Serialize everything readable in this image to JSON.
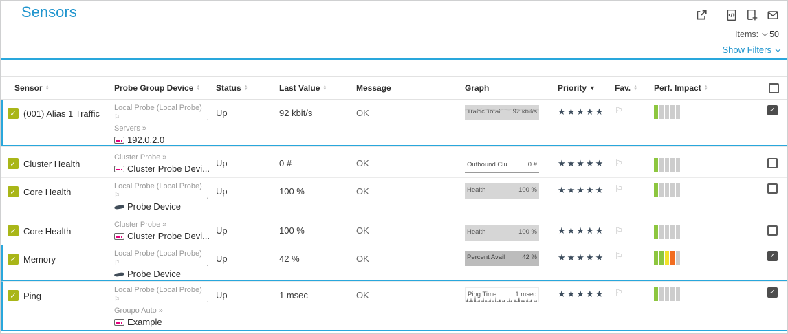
{
  "page": {
    "title": "Sensors"
  },
  "toolbar": {
    "items_label": "Items:",
    "items_value": "50",
    "show_filters_label": "Show Filters",
    "icons": [
      "external-link-icon",
      "code-file-icon",
      "add-file-icon",
      "envelope-icon"
    ]
  },
  "icons": {
    "check": "✓",
    "flag": "⚐",
    "star": "★",
    "raquo": "»"
  },
  "colors": {
    "green": "#8dc63f",
    "yellow": "#f2e22a",
    "orange": "#f26d21",
    "gray": "#cdcdcd",
    "accent_blue": "#29a7dc",
    "title_blue": "#2095ce",
    "sensor_ok": "#a9b618",
    "star": "#3d4d5d"
  },
  "table": {
    "columns": [
      {
        "label": "Sensor",
        "sort": "both"
      },
      {
        "label": "Probe Group Device",
        "sort": "both"
      },
      {
        "label": "Status",
        "sort": "both"
      },
      {
        "label": "Last Value",
        "sort": "both"
      },
      {
        "label": "Message",
        "sort": "none"
      },
      {
        "label": "Graph",
        "sort": "none"
      },
      {
        "label": "Priority",
        "sort": "desc"
      },
      {
        "label": "Fav.",
        "sort": "both"
      },
      {
        "label": "Perf. Impact",
        "sort": "both"
      }
    ],
    "rows": [
      {
        "name": "(001) Alias 1 Traffic",
        "probe": "Local Probe (Local Probe)",
        "probe_dot": ".",
        "group": "Servers",
        "device": "192.0.2.0",
        "device_icon": "device",
        "status": "Up",
        "last_value": "92 kbit/s",
        "message": "OK",
        "graph": {
          "label": "Traffic Total",
          "value": "92 kbit/s",
          "style": "traffic"
        },
        "priority": 5,
        "perf_impact": [
          "green",
          "gray",
          "gray",
          "gray",
          "gray"
        ],
        "selected": true,
        "checked": true
      },
      {
        "name": "Cluster Health",
        "probe": "",
        "probe_dot": "",
        "group": "Cluster Probe",
        "device": "Cluster Probe Devi...",
        "device_icon": "device",
        "status": "Up",
        "last_value": "0 #",
        "message": "OK",
        "graph": {
          "label": "Outbound Clu",
          "value": "0 #",
          "style": "plain"
        },
        "priority": 5,
        "perf_impact": [
          "green",
          "gray",
          "gray",
          "gray",
          "gray"
        ],
        "selected": false,
        "checked": false
      },
      {
        "name": "Core Health",
        "probe": "Local Probe (Local Probe)",
        "probe_dot": ".",
        "group": "",
        "device": "Probe Device",
        "device_icon": "probe",
        "status": "Up",
        "last_value": "100 %",
        "message": "OK",
        "graph": {
          "label": "Health",
          "value": "100 %",
          "style": "health"
        },
        "priority": 5,
        "perf_impact": [
          "green",
          "gray",
          "gray",
          "gray",
          "gray"
        ],
        "selected": false,
        "checked": false
      },
      {
        "name": "Core Health",
        "probe": "",
        "probe_dot": "",
        "group": "Cluster Probe",
        "device": "Cluster Probe Devi...",
        "device_icon": "device",
        "status": "Up",
        "last_value": "100 %",
        "message": "OK",
        "graph": {
          "label": "Health",
          "value": "100 %",
          "style": "health"
        },
        "priority": 5,
        "perf_impact": [
          "green",
          "gray",
          "gray",
          "gray",
          "gray"
        ],
        "selected": false,
        "checked": false
      },
      {
        "name": "Memory",
        "probe": "Local Probe (Local Probe)",
        "probe_dot": ".",
        "group": "",
        "device": "Probe Device",
        "device_icon": "probe",
        "status": "Up",
        "last_value": "42 %",
        "message": "OK",
        "graph": {
          "label": "Percent Avail",
          "value": "42 %",
          "style": "memory"
        },
        "priority": 5,
        "perf_impact": [
          "green",
          "green",
          "yellow",
          "orange",
          "gray"
        ],
        "selected": true,
        "checked": true
      },
      {
        "name": "Ping",
        "probe": "Local Probe (Local Probe)",
        "probe_dot": ".",
        "group": "Groupo Auto",
        "device": "Example",
        "device_icon": "device",
        "status": "Up",
        "last_value": "1 msec",
        "message": "OK",
        "graph": {
          "label": "Ping Time",
          "value": "1 msec",
          "style": "ping"
        },
        "priority": 5,
        "perf_impact": [
          "green",
          "gray",
          "gray",
          "gray",
          "gray"
        ],
        "selected": true,
        "checked": true
      }
    ]
  }
}
